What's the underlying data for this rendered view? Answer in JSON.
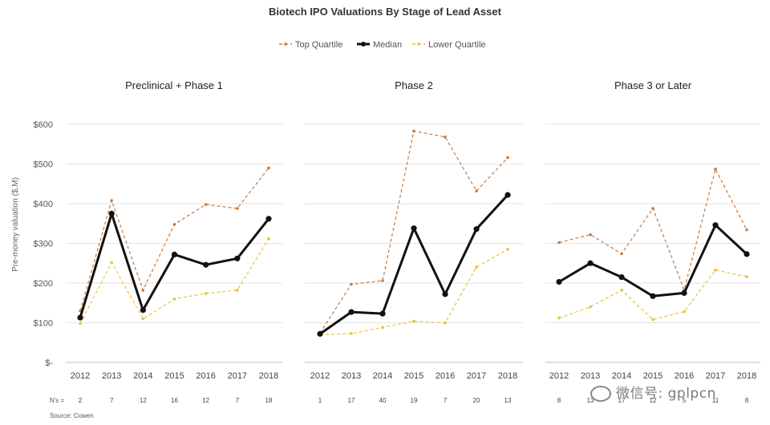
{
  "chart_data": {
    "type": "line",
    "title": "Biotech IPO Valuations By Stage of Lead Asset",
    "ylabel": "Pre-money valuation ($,M)",
    "ylim": [
      0,
      600
    ],
    "y_ticks": [
      0,
      100,
      200,
      300,
      400,
      500,
      600
    ],
    "y_tick_labels": [
      "$-",
      "$100",
      "$200",
      "$300",
      "$400",
      "$500",
      "$600"
    ],
    "grid": true,
    "legend_position": "top-center",
    "legend": [
      {
        "name": "Top Quartile",
        "color": "#c87a3e",
        "style": "dashed"
      },
      {
        "name": "Median",
        "color": "#111111",
        "style": "solid"
      },
      {
        "name": "Lower Quartile",
        "color": "#e6c439",
        "style": "dashed"
      }
    ],
    "n_label": "N's =",
    "source": "Source: Cowen",
    "panels": [
      {
        "title": "Preclinical + Phase 1",
        "x": [
          "2012",
          "2013",
          "2014",
          "2015",
          "2016",
          "2017",
          "2018"
        ],
        "n": [
          "2",
          "7",
          "12",
          "16",
          "12",
          "7",
          "18"
        ],
        "series": [
          {
            "name": "Top Quartile",
            "values": [
              130,
              408,
              182,
              348,
              398,
              388,
              490
            ]
          },
          {
            "name": "Median",
            "values": [
              113,
              375,
              132,
              272,
              246,
              262,
              362
            ]
          },
          {
            "name": "Lower Quartile",
            "values": [
              98,
              252,
              110,
              160,
              174,
              182,
              312
            ]
          }
        ]
      },
      {
        "title": "Phase 2",
        "x": [
          "2012",
          "2013",
          "2014",
          "2015",
          "2016",
          "2017",
          "2018"
        ],
        "n": [
          "1",
          "17",
          "40",
          "19",
          "7",
          "20",
          "13"
        ],
        "series": [
          {
            "name": "Top Quartile",
            "values": [
              74,
              197,
              206,
              583,
              568,
              432,
              516
            ]
          },
          {
            "name": "Median",
            "values": [
              72,
              127,
              123,
              338,
              172,
              336,
              422
            ]
          },
          {
            "name": "Lower Quartile",
            "values": [
              70,
              73,
              88,
              104,
              100,
              240,
              285
            ]
          }
        ]
      },
      {
        "title": "Phase 3 or Later",
        "x": [
          "2012",
          "2013",
          "2014",
          "2015",
          "2016",
          "2017",
          "2018"
        ],
        "n": [
          "8",
          "13",
          "17",
          "12",
          "5",
          "11",
          "8"
        ],
        "series": [
          {
            "name": "Top Quartile",
            "values": [
              302,
              322,
              274,
              388,
              183,
              487,
              334
            ]
          },
          {
            "name": "Median",
            "values": [
              203,
              250,
              215,
              167,
              175,
              346,
              273
            ]
          },
          {
            "name": "Lower Quartile",
            "values": [
              112,
              140,
              182,
              108,
              128,
              233,
              216
            ]
          }
        ]
      }
    ]
  },
  "watermark": "微信号: gplpcn"
}
